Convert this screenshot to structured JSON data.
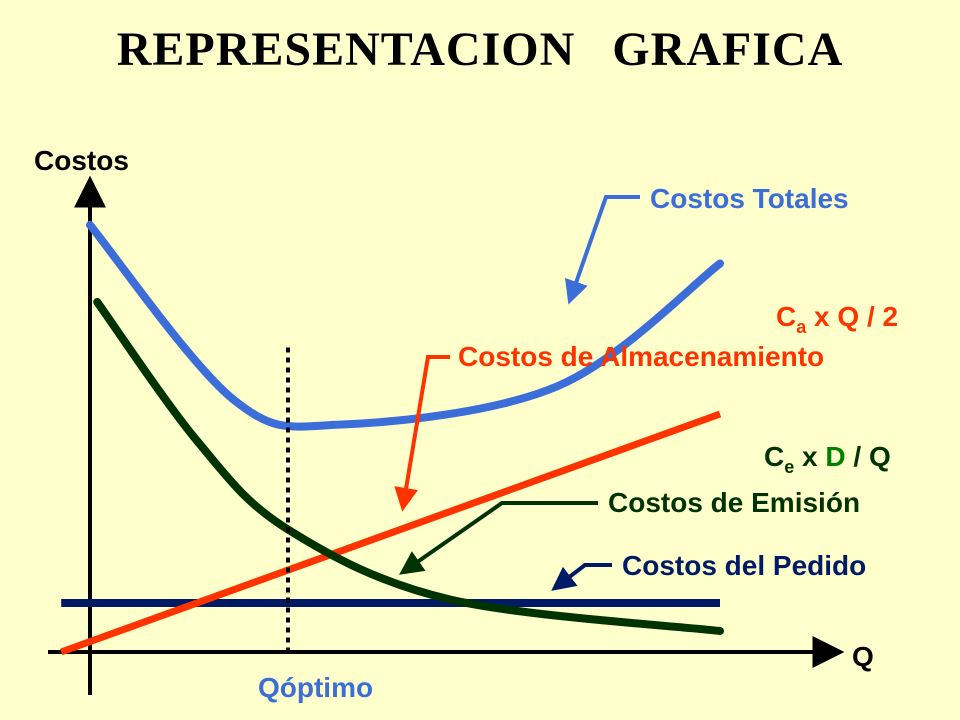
{
  "title": "REPRESENTACION GRAFICA",
  "chart_data": {
    "type": "line",
    "ylabel": "Costos",
    "xlabel": "Q",
    "x_marker_label": "Qóptimo",
    "grid": false,
    "series": [
      {
        "name": "Costos Totales",
        "color": "#3B6ED8",
        "points": [
          [
            0.0,
            1.22
          ],
          [
            0.4,
            0.72
          ],
          [
            0.7,
            0.65
          ],
          [
            1.3,
            0.76
          ],
          [
            1.75,
            1.11
          ]
        ]
      },
      {
        "name": "Costos de Almacenamiento",
        "formula_label": "C_a x Q / 2",
        "color": "#FF3300",
        "points": [
          [
            -0.08,
            0.0
          ],
          [
            1.75,
            0.68
          ]
        ]
      },
      {
        "name": "Costos de Emisión",
        "formula_label": "C_e x D / Q",
        "color": "#003300",
        "points": [
          [
            0.02,
            1.0
          ],
          [
            0.3,
            0.6
          ],
          [
            0.55,
            0.35
          ],
          [
            1.0,
            0.15
          ],
          [
            1.75,
            0.06
          ]
        ]
      },
      {
        "name": "Costos del Pedido",
        "color": "#001A66",
        "points": [
          [
            -0.08,
            0.14
          ],
          [
            1.75,
            0.14
          ]
        ]
      }
    ],
    "q_optimo": 0.55,
    "formulas": {
      "almacenamiento": {
        "C": "C",
        "sub": "a",
        "rest": " x Q / 2"
      },
      "emision": {
        "C": "C",
        "sub": "e",
        "x": " x ",
        "D": "D",
        "rest": " / Q"
      }
    }
  }
}
